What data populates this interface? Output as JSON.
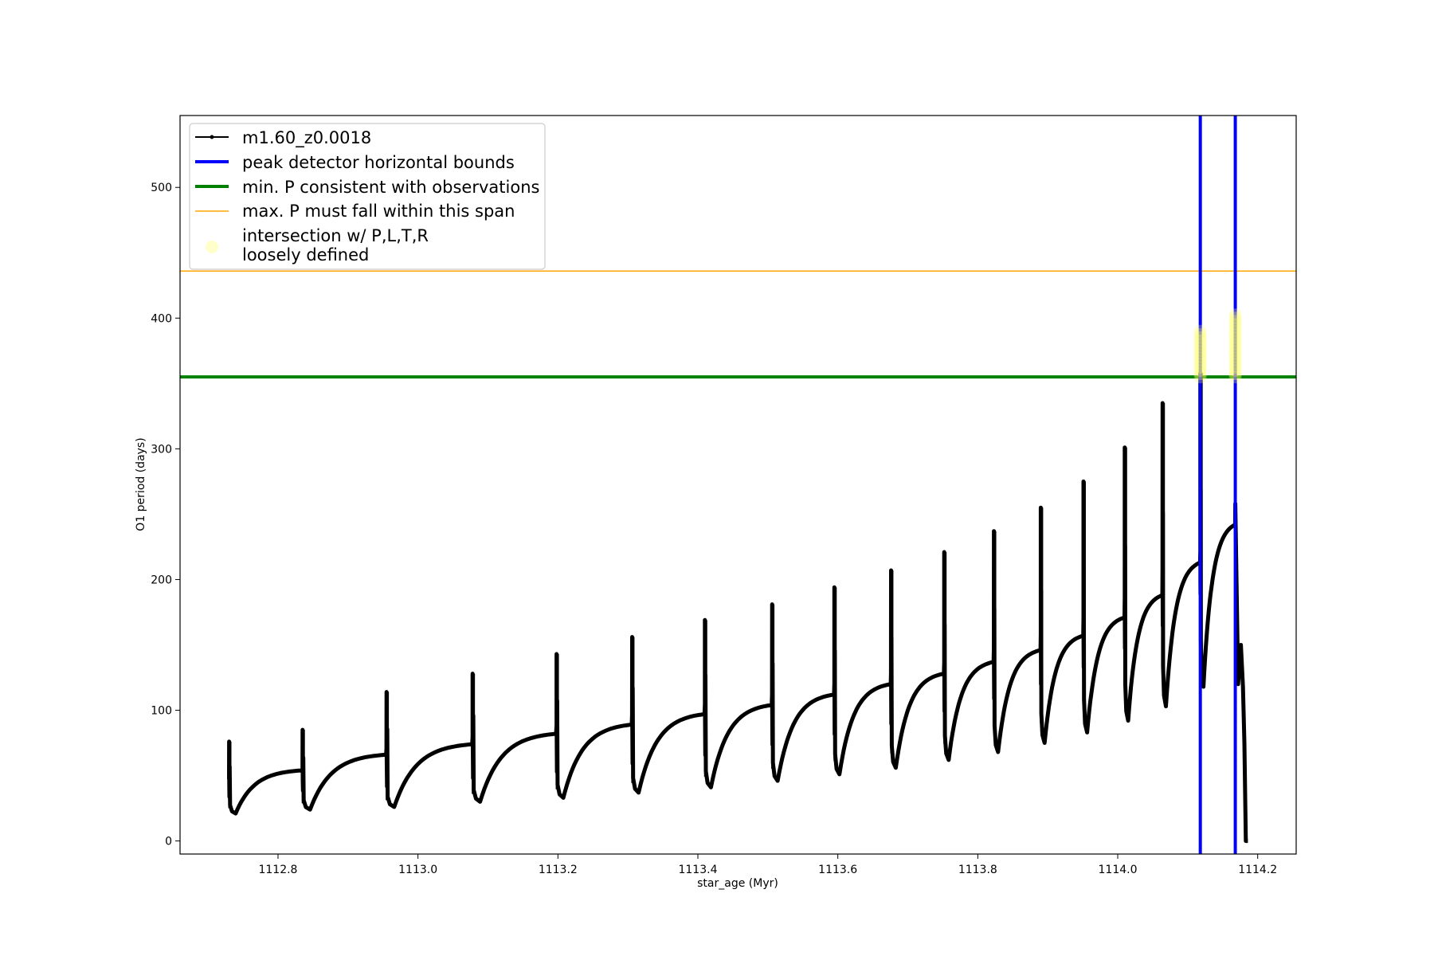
{
  "chart_data": {
    "type": "line",
    "xlabel": "star_age (Myr)",
    "ylabel": "O1 period (days)",
    "xlim": [
      1112.66,
      1114.255
    ],
    "ylim": [
      -10,
      555
    ],
    "xticks": [
      1112.8,
      1113.0,
      1113.2,
      1113.4,
      1113.6,
      1113.8,
      1114.0,
      1114.2
    ],
    "xtick_labels": [
      "1112.8",
      "1113.0",
      "1113.2",
      "1113.4",
      "1113.6",
      "1113.8",
      "1114.0",
      "1114.2"
    ],
    "yticks": [
      0,
      100,
      200,
      300,
      400,
      500
    ],
    "ytick_labels": [
      "0",
      "100",
      "200",
      "300",
      "400",
      "500"
    ],
    "grid": false,
    "legend_position": "top-left",
    "series": [
      {
        "name": "m1.60_z0.0018",
        "color": "#000000",
        "marker": "dot",
        "cycles": [
          {
            "x_start": 1112.73,
            "x_end": 1112.835,
            "spike": 76,
            "min": 21,
            "plateau": 54
          },
          {
            "x_start": 1112.835,
            "x_end": 1112.955,
            "spike": 85,
            "min": 24,
            "plateau": 66
          },
          {
            "x_start": 1112.955,
            "x_end": 1113.078,
            "spike": 114,
            "min": 26,
            "plateau": 74
          },
          {
            "x_start": 1113.078,
            "x_end": 1113.198,
            "spike": 128,
            "min": 30,
            "plateau": 82
          },
          {
            "x_start": 1113.198,
            "x_end": 1113.306,
            "spike": 143,
            "min": 33,
            "plateau": 89
          },
          {
            "x_start": 1113.306,
            "x_end": 1113.41,
            "spike": 156,
            "min": 37,
            "plateau": 97
          },
          {
            "x_start": 1113.41,
            "x_end": 1113.506,
            "spike": 169,
            "min": 41,
            "plateau": 104
          },
          {
            "x_start": 1113.506,
            "x_end": 1113.595,
            "spike": 181,
            "min": 46,
            "plateau": 112
          },
          {
            "x_start": 1113.595,
            "x_end": 1113.676,
            "spike": 194,
            "min": 51,
            "plateau": 120
          },
          {
            "x_start": 1113.676,
            "x_end": 1113.752,
            "spike": 207,
            "min": 56,
            "plateau": 128
          },
          {
            "x_start": 1113.752,
            "x_end": 1113.823,
            "spike": 221,
            "min": 62,
            "plateau": 137
          },
          {
            "x_start": 1113.823,
            "x_end": 1113.89,
            "spike": 237,
            "min": 68,
            "plateau": 146
          },
          {
            "x_start": 1113.89,
            "x_end": 1113.951,
            "spike": 255,
            "min": 75,
            "plateau": 157
          },
          {
            "x_start": 1113.951,
            "x_end": 1114.01,
            "spike": 275,
            "min": 83,
            "plateau": 171
          },
          {
            "x_start": 1114.01,
            "x_end": 1114.064,
            "spike": 301,
            "min": 92,
            "plateau": 188
          },
          {
            "x_start": 1114.064,
            "x_end": 1114.118,
            "spike": 335,
            "min": 103,
            "plateau": 213
          },
          {
            "x_start": 1114.118,
            "x_end": 1114.168,
            "spike": 358,
            "min": 118,
            "plateau": 242
          }
        ],
        "tail": [
          {
            "x": 1114.168,
            "y": 258
          },
          {
            "x": 1114.172,
            "y": 120
          },
          {
            "x": 1114.176,
            "y": 150
          },
          {
            "x": 1114.179,
            "y": 118
          },
          {
            "x": 1114.181,
            "y": 75
          },
          {
            "x": 1114.183,
            "y": 0
          },
          {
            "x": 1114.186,
            "y": 0
          }
        ]
      },
      {
        "name": "peak detector horizontal bounds",
        "color": "#0000ff",
        "type": "vline",
        "x": [
          1114.118,
          1114.168
        ]
      },
      {
        "name": "min. P consistent with observations",
        "color": "#008000",
        "type": "hline",
        "y": 355
      },
      {
        "name": "max. P must fall within this span",
        "color": "#ffa500",
        "type": "hline",
        "y": 436
      },
      {
        "name": "intersection w/ P,L,T,R\nloosely defined",
        "color": "#ffff66",
        "type": "scatter",
        "points": [
          {
            "x": 1114.118,
            "y_min": 355,
            "y_max": 390
          },
          {
            "x": 1114.168,
            "y_min": 355,
            "y_max": 403
          }
        ]
      }
    ],
    "legend": [
      {
        "label": "m1.60_z0.0018",
        "color": "#000000",
        "kind": "line-marker"
      },
      {
        "label": "peak detector horizontal bounds",
        "color": "#0000ff",
        "kind": "line"
      },
      {
        "label": "min. P consistent with observations",
        "color": "#008000",
        "kind": "line"
      },
      {
        "label": "max. P must fall within this span",
        "color": "#ffa500",
        "kind": "thin-line"
      },
      {
        "label_line1": "intersection w/ P,L,T,R",
        "label_line2": "loosely defined",
        "color": "#ffff66",
        "kind": "marker"
      }
    ]
  }
}
